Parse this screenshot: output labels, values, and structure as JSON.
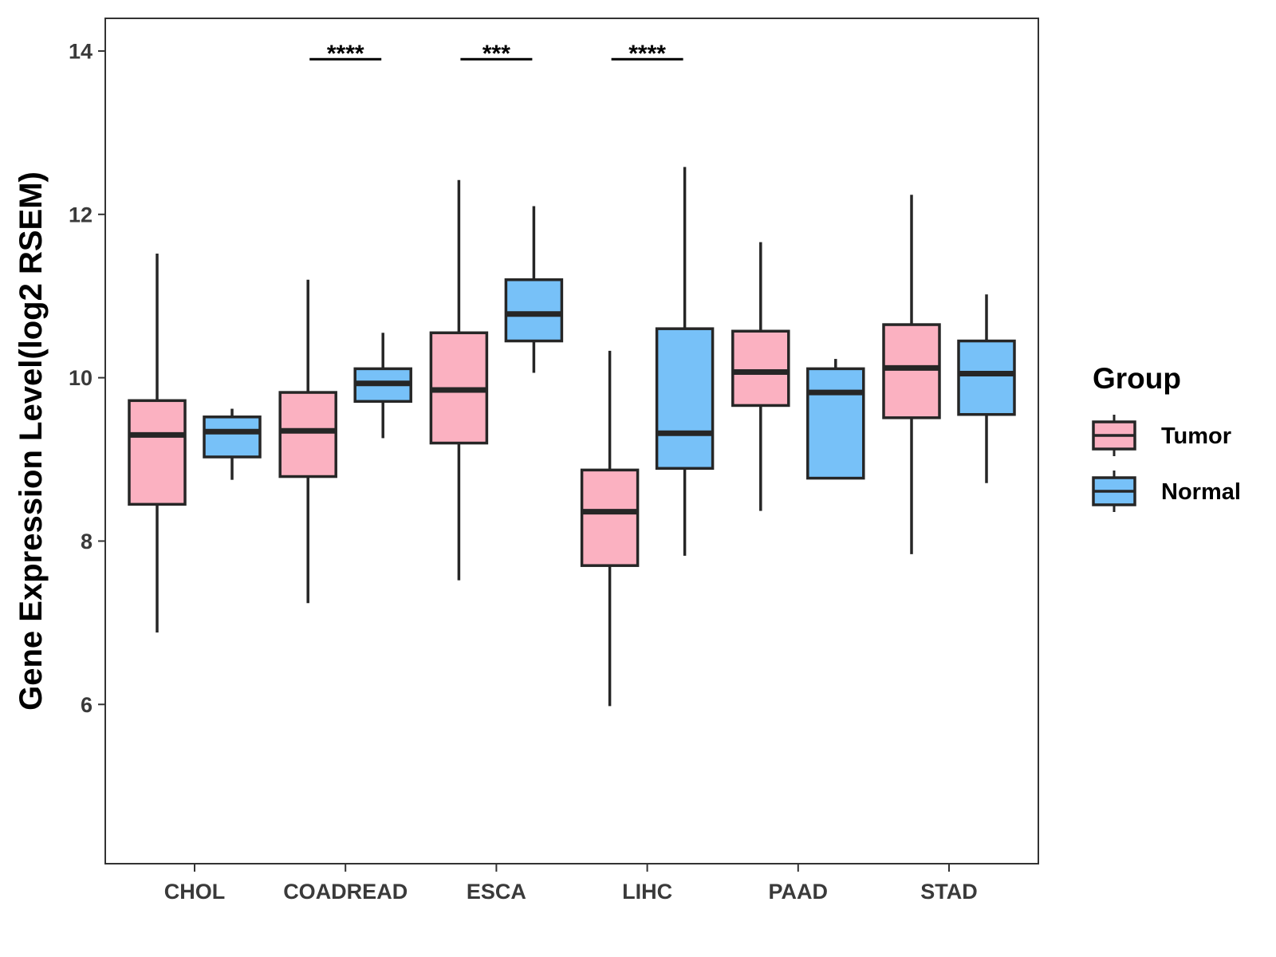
{
  "chart_data": {
    "type": "boxplot",
    "title": "",
    "xlabel": "",
    "ylabel": "Gene Expression Level(log2 RSEM)",
    "ylim": [
      4.05,
      14.4
    ],
    "yticks": [
      6,
      8,
      10,
      12,
      14
    ],
    "ytick_labels": [
      "6",
      "8",
      "10",
      "12",
      "14"
    ],
    "grid": false,
    "categories": [
      "CHOL",
      "COADREAD",
      "ESCA",
      "LIHC",
      "PAAD",
      "STAD"
    ],
    "legend": {
      "title": "Group",
      "position": "right",
      "entries": [
        {
          "label": "Tumor",
          "color": "#fbb1c1"
        },
        {
          "label": "Normal",
          "color": "#77c1f8"
        }
      ]
    },
    "series": [
      {
        "name": "Tumor",
        "color": "#fbb1c1",
        "boxes": [
          {
            "category": "CHOL",
            "whisker_low": 6.88,
            "q1": 8.45,
            "median": 9.3,
            "q3": 9.72,
            "whisker_high": 11.52
          },
          {
            "category": "COADREAD",
            "whisker_low": 7.24,
            "q1": 8.79,
            "median": 9.35,
            "q3": 9.82,
            "whisker_high": 11.2
          },
          {
            "category": "ESCA",
            "whisker_low": 7.52,
            "q1": 9.2,
            "median": 9.85,
            "q3": 10.55,
            "whisker_high": 12.42
          },
          {
            "category": "LIHC",
            "whisker_low": 5.98,
            "q1": 7.7,
            "median": 8.36,
            "q3": 8.87,
            "whisker_high": 10.33
          },
          {
            "category": "PAAD",
            "whisker_low": 8.37,
            "q1": 9.66,
            "median": 10.07,
            "q3": 10.57,
            "whisker_high": 11.66
          },
          {
            "category": "STAD",
            "whisker_low": 7.84,
            "q1": 9.51,
            "median": 10.12,
            "q3": 10.65,
            "whisker_high": 12.24
          }
        ]
      },
      {
        "name": "Normal",
        "color": "#77c1f8",
        "boxes": [
          {
            "category": "CHOL",
            "whisker_low": 8.75,
            "q1": 9.03,
            "median": 9.34,
            "q3": 9.52,
            "whisker_high": 9.62
          },
          {
            "category": "COADREAD",
            "whisker_low": 9.26,
            "q1": 9.71,
            "median": 9.93,
            "q3": 10.11,
            "whisker_high": 10.55
          },
          {
            "category": "ESCA",
            "whisker_low": 10.06,
            "q1": 10.45,
            "median": 10.78,
            "q3": 11.2,
            "whisker_high": 12.1
          },
          {
            "category": "LIHC",
            "whisker_low": 7.82,
            "q1": 8.89,
            "median": 9.32,
            "q3": 10.6,
            "whisker_high": 12.58
          },
          {
            "category": "PAAD",
            "whisker_low": 8.77,
            "q1": 8.77,
            "median": 9.82,
            "q3": 10.11,
            "whisker_high": 10.23
          },
          {
            "category": "STAD",
            "whisker_low": 8.71,
            "q1": 9.55,
            "median": 10.05,
            "q3": 10.45,
            "whisker_high": 11.02
          }
        ]
      }
    ],
    "significance": [
      {
        "category": "COADREAD",
        "label": "****",
        "y": 13.9
      },
      {
        "category": "ESCA",
        "label": "***",
        "y": 13.9
      },
      {
        "category": "LIHC",
        "label": "****",
        "y": 13.9
      }
    ]
  }
}
